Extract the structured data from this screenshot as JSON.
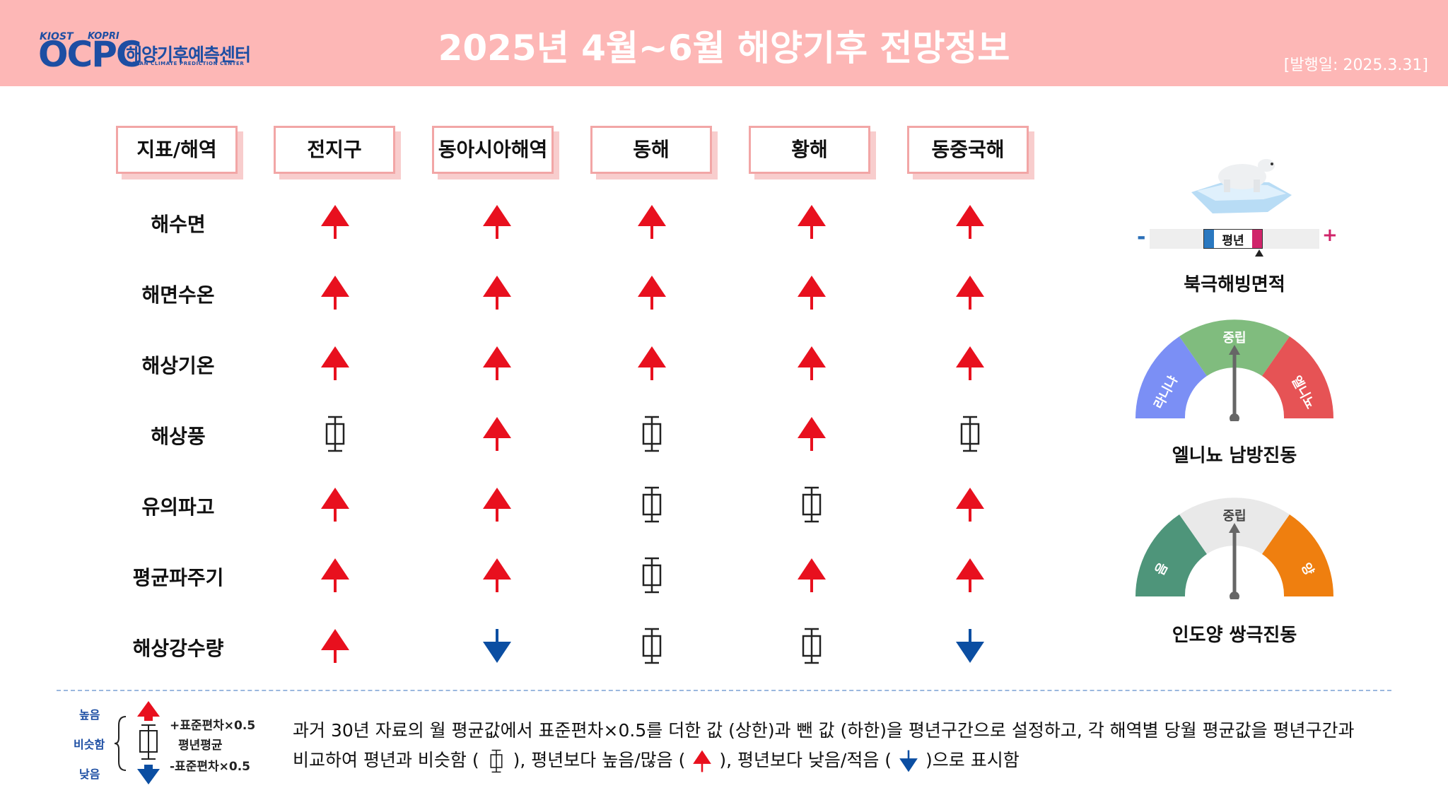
{
  "header": {
    "logo": {
      "org1": "KIOST",
      "org2": "KOPRI",
      "mark": "OCPC",
      "kr": "해양기후예측센터",
      "en": "OCEAN CLIMATE PREDICTION CENTER"
    },
    "title": "2025년 4월~6월 해양기후 전망정보",
    "issue_date": "[발행일: 2025.3.31]"
  },
  "table": {
    "columns": [
      "지표/해역",
      "전지구",
      "동아시아해역",
      "동해",
      "황해",
      "동중국해"
    ],
    "rows": [
      {
        "label": "해수면",
        "values": [
          "up",
          "up",
          "up",
          "up",
          "up"
        ]
      },
      {
        "label": "해면수온",
        "values": [
          "up",
          "up",
          "up",
          "up",
          "up"
        ]
      },
      {
        "label": "해상기온",
        "values": [
          "up",
          "up",
          "up",
          "up",
          "up"
        ]
      },
      {
        "label": "해상풍",
        "values": [
          "normal",
          "up",
          "normal",
          "up",
          "normal"
        ]
      },
      {
        "label": "유의파고",
        "values": [
          "up",
          "up",
          "normal",
          "normal",
          "up"
        ]
      },
      {
        "label": "평균파주기",
        "values": [
          "up",
          "up",
          "normal",
          "up",
          "up"
        ]
      },
      {
        "label": "해상강수량",
        "values": [
          "up",
          "down",
          "normal",
          "normal",
          "down"
        ]
      }
    ]
  },
  "indices": {
    "sea_ice": {
      "label": "북극해빙면적",
      "bar_center": "평년",
      "minus": "-",
      "plus": "+"
    },
    "enso": {
      "label": "엘니뇨 남방진동",
      "left": "라니냐",
      "center": "중립",
      "right": "엘니뇨",
      "pointer": "중립"
    },
    "iod": {
      "label": "인도양 쌍극진동",
      "left": "음",
      "center": "중립",
      "right": "양",
      "pointer": "중립"
    }
  },
  "legend": {
    "high": "높음",
    "similar": "비슷함",
    "low": "낮음",
    "upper": "+표준편차×0.5",
    "mean": "평년평균",
    "lower": "-표준편차×0.5",
    "line1": "과거 30년 자료의 월 평균값에서 표준편차×0.5를   더한 값 (상한)과 뺀 값 (하한)을 평년구간으로   설정하고, 각 해역별  당월 평균값을 평년구간과",
    "line2_a": "비교하여 평년과 비슷함 (",
    "line2_b": "),   평년보다  높음/많음 (",
    "line2_c": "), 평년보다  낮음/적음 (",
    "line2_d": ")으로  표시함"
  },
  "colors": {
    "header_bg": "#fdb7b6",
    "up": "#e8101e",
    "down": "#0b4ea2",
    "brand": "#1d4ea3"
  }
}
